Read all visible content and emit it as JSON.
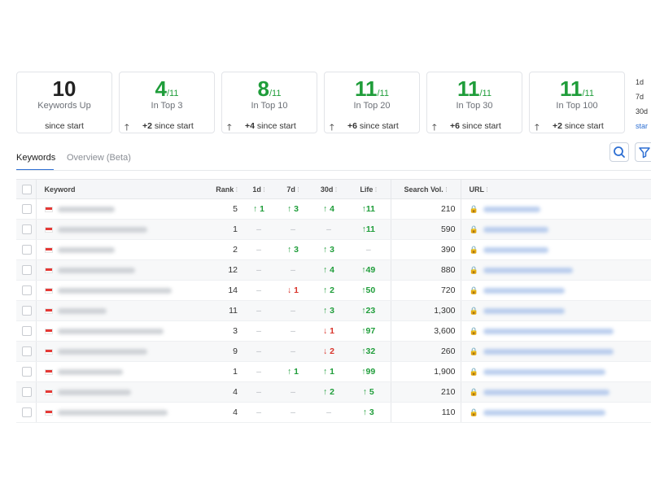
{
  "summary_cards": [
    {
      "value": "10",
      "denominator": "",
      "label": "Keywords Up",
      "footer_arrow": "",
      "footer_delta": "",
      "footer_text": "since start",
      "value_color": "#222222"
    },
    {
      "value": "4",
      "denominator": "/11",
      "label": "In Top 3",
      "footer_arrow": "🡑",
      "footer_delta": "+2",
      "footer_text": "since start",
      "value_color": "#1f9d3a"
    },
    {
      "value": "8",
      "denominator": "/11",
      "label": "In Top 10",
      "footer_arrow": "🡑",
      "footer_delta": "+4",
      "footer_text": "since start",
      "value_color": "#1f9d3a"
    },
    {
      "value": "11",
      "denominator": "/11",
      "label": "In Top 20",
      "footer_arrow": "🡑",
      "footer_delta": "+6",
      "footer_text": "since start",
      "value_color": "#1f9d3a"
    },
    {
      "value": "11",
      "denominator": "/11",
      "label": "In Top 30",
      "footer_arrow": "🡑",
      "footer_delta": "+6",
      "footer_text": "since start",
      "value_color": "#1f9d3a"
    },
    {
      "value": "11",
      "denominator": "/11",
      "label": "In Top 100",
      "footer_arrow": "🡑",
      "footer_delta": "+2",
      "footer_text": "since start",
      "value_color": "#1f9d3a"
    }
  ],
  "period_options": {
    "d1": "1d",
    "d7": "7d",
    "d30": "30d",
    "start": "star"
  },
  "tabs": {
    "keywords": "Keywords",
    "overview": "Overview (Beta)"
  },
  "toolbar": {
    "search_icon": "search-icon",
    "filter_icon": "filter-icon"
  },
  "table": {
    "headers": {
      "keyword": "Keyword",
      "rank": "Rank",
      "d1": "1d",
      "d7": "7d",
      "d30": "30d",
      "life": "Life",
      "search_vol": "Search Vol.",
      "url": "URL"
    },
    "rows": [
      {
        "rank": "5",
        "d1": "↑ 1",
        "d7": "↑ 3",
        "d30": "↑ 4",
        "life": "↑11",
        "vol": "210"
      },
      {
        "rank": "1",
        "d1": "–",
        "d7": "–",
        "d30": "–",
        "life": "↑11",
        "vol": "590"
      },
      {
        "rank": "2",
        "d1": "–",
        "d7": "↑ 3",
        "d30": "↑ 3",
        "life": "–",
        "vol": "390"
      },
      {
        "rank": "12",
        "d1": "–",
        "d7": "–",
        "d30": "↑ 4",
        "life": "↑49",
        "vol": "880"
      },
      {
        "rank": "14",
        "d1": "–",
        "d7": "↓ 1",
        "d30": "↑ 2",
        "life": "↑50",
        "vol": "720"
      },
      {
        "rank": "11",
        "d1": "–",
        "d7": "–",
        "d30": "↑ 3",
        "life": "↑23",
        "vol": "1,300"
      },
      {
        "rank": "3",
        "d1": "–",
        "d7": "–",
        "d30": "↓ 1",
        "life": "↑97",
        "vol": "3,600"
      },
      {
        "rank": "9",
        "d1": "–",
        "d7": "–",
        "d30": "↓ 2",
        "life": "↑32",
        "vol": "260"
      },
      {
        "rank": "1",
        "d1": "–",
        "d7": "↑ 1",
        "d30": "↑ 1",
        "life": "↑99",
        "vol": "1,900"
      },
      {
        "rank": "4",
        "d1": "–",
        "d7": "–",
        "d30": "↑ 2",
        "life": "↑ 5",
        "vol": "210"
      },
      {
        "rank": "4",
        "d1": "–",
        "d7": "–",
        "d30": "–",
        "life": "↑ 3",
        "vol": "110"
      }
    ]
  }
}
